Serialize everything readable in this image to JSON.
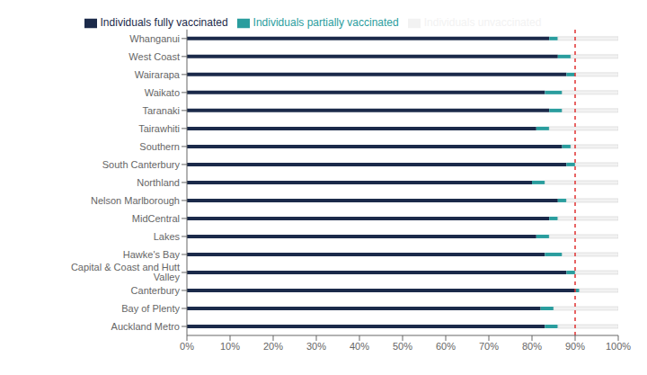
{
  "chart_data": {
    "type": "bar",
    "orientation": "horizontal",
    "stacked": true,
    "legend": "top",
    "grid": false,
    "categories": [
      "Auckland Metro",
      "Bay of Plenty",
      "Canterbury",
      "Capital & Coast and Hutt Valley",
      "Hawke's Bay",
      "Lakes",
      "MidCentral",
      "Nelson Marlborough",
      "Northland",
      "South Canterbury",
      "Southern",
      "Tairawhiti",
      "Taranaki",
      "Waikato",
      "Wairarapa",
      "West Coast",
      "Whanganui"
    ],
    "series": [
      {
        "name": "Individuals fully vaccinated",
        "color": "#1b2a4a",
        "values": [
          83,
          82,
          90,
          88,
          83,
          81,
          84,
          86,
          80,
          88,
          87,
          81,
          84,
          83,
          88,
          86,
          84
        ]
      },
      {
        "name": "Individuals partially vaccinated",
        "color": "#2a9d9e",
        "values": [
          3,
          3,
          1,
          2,
          4,
          3,
          2,
          2,
          3,
          2,
          2,
          3,
          3,
          4,
          2,
          3,
          2
        ]
      },
      {
        "name": "Individuals unvaccinated",
        "color": "#f2f2f2",
        "values": [
          14,
          15,
          9,
          10,
          13,
          16,
          14,
          12,
          17,
          10,
          11,
          16,
          13,
          13,
          10,
          11,
          14
        ]
      }
    ],
    "xlim": [
      0,
      100
    ],
    "xticks": [
      {
        "value": 0,
        "label": "0%"
      },
      {
        "value": 10,
        "label": "10%"
      },
      {
        "value": 20,
        "label": "20%"
      },
      {
        "value": 30,
        "label": "30%"
      },
      {
        "value": 40,
        "label": "40%"
      },
      {
        "value": 50,
        "label": "50%"
      },
      {
        "value": 60,
        "label": "60%"
      },
      {
        "value": 70,
        "label": "70%"
      },
      {
        "value": 80,
        "label": "80%"
      },
      {
        "value": 90,
        "label": "90%"
      },
      {
        "value": 100,
        "label": "100%"
      }
    ],
    "reference_lines": [
      {
        "x": 90,
        "color": "#e03030"
      }
    ]
  }
}
